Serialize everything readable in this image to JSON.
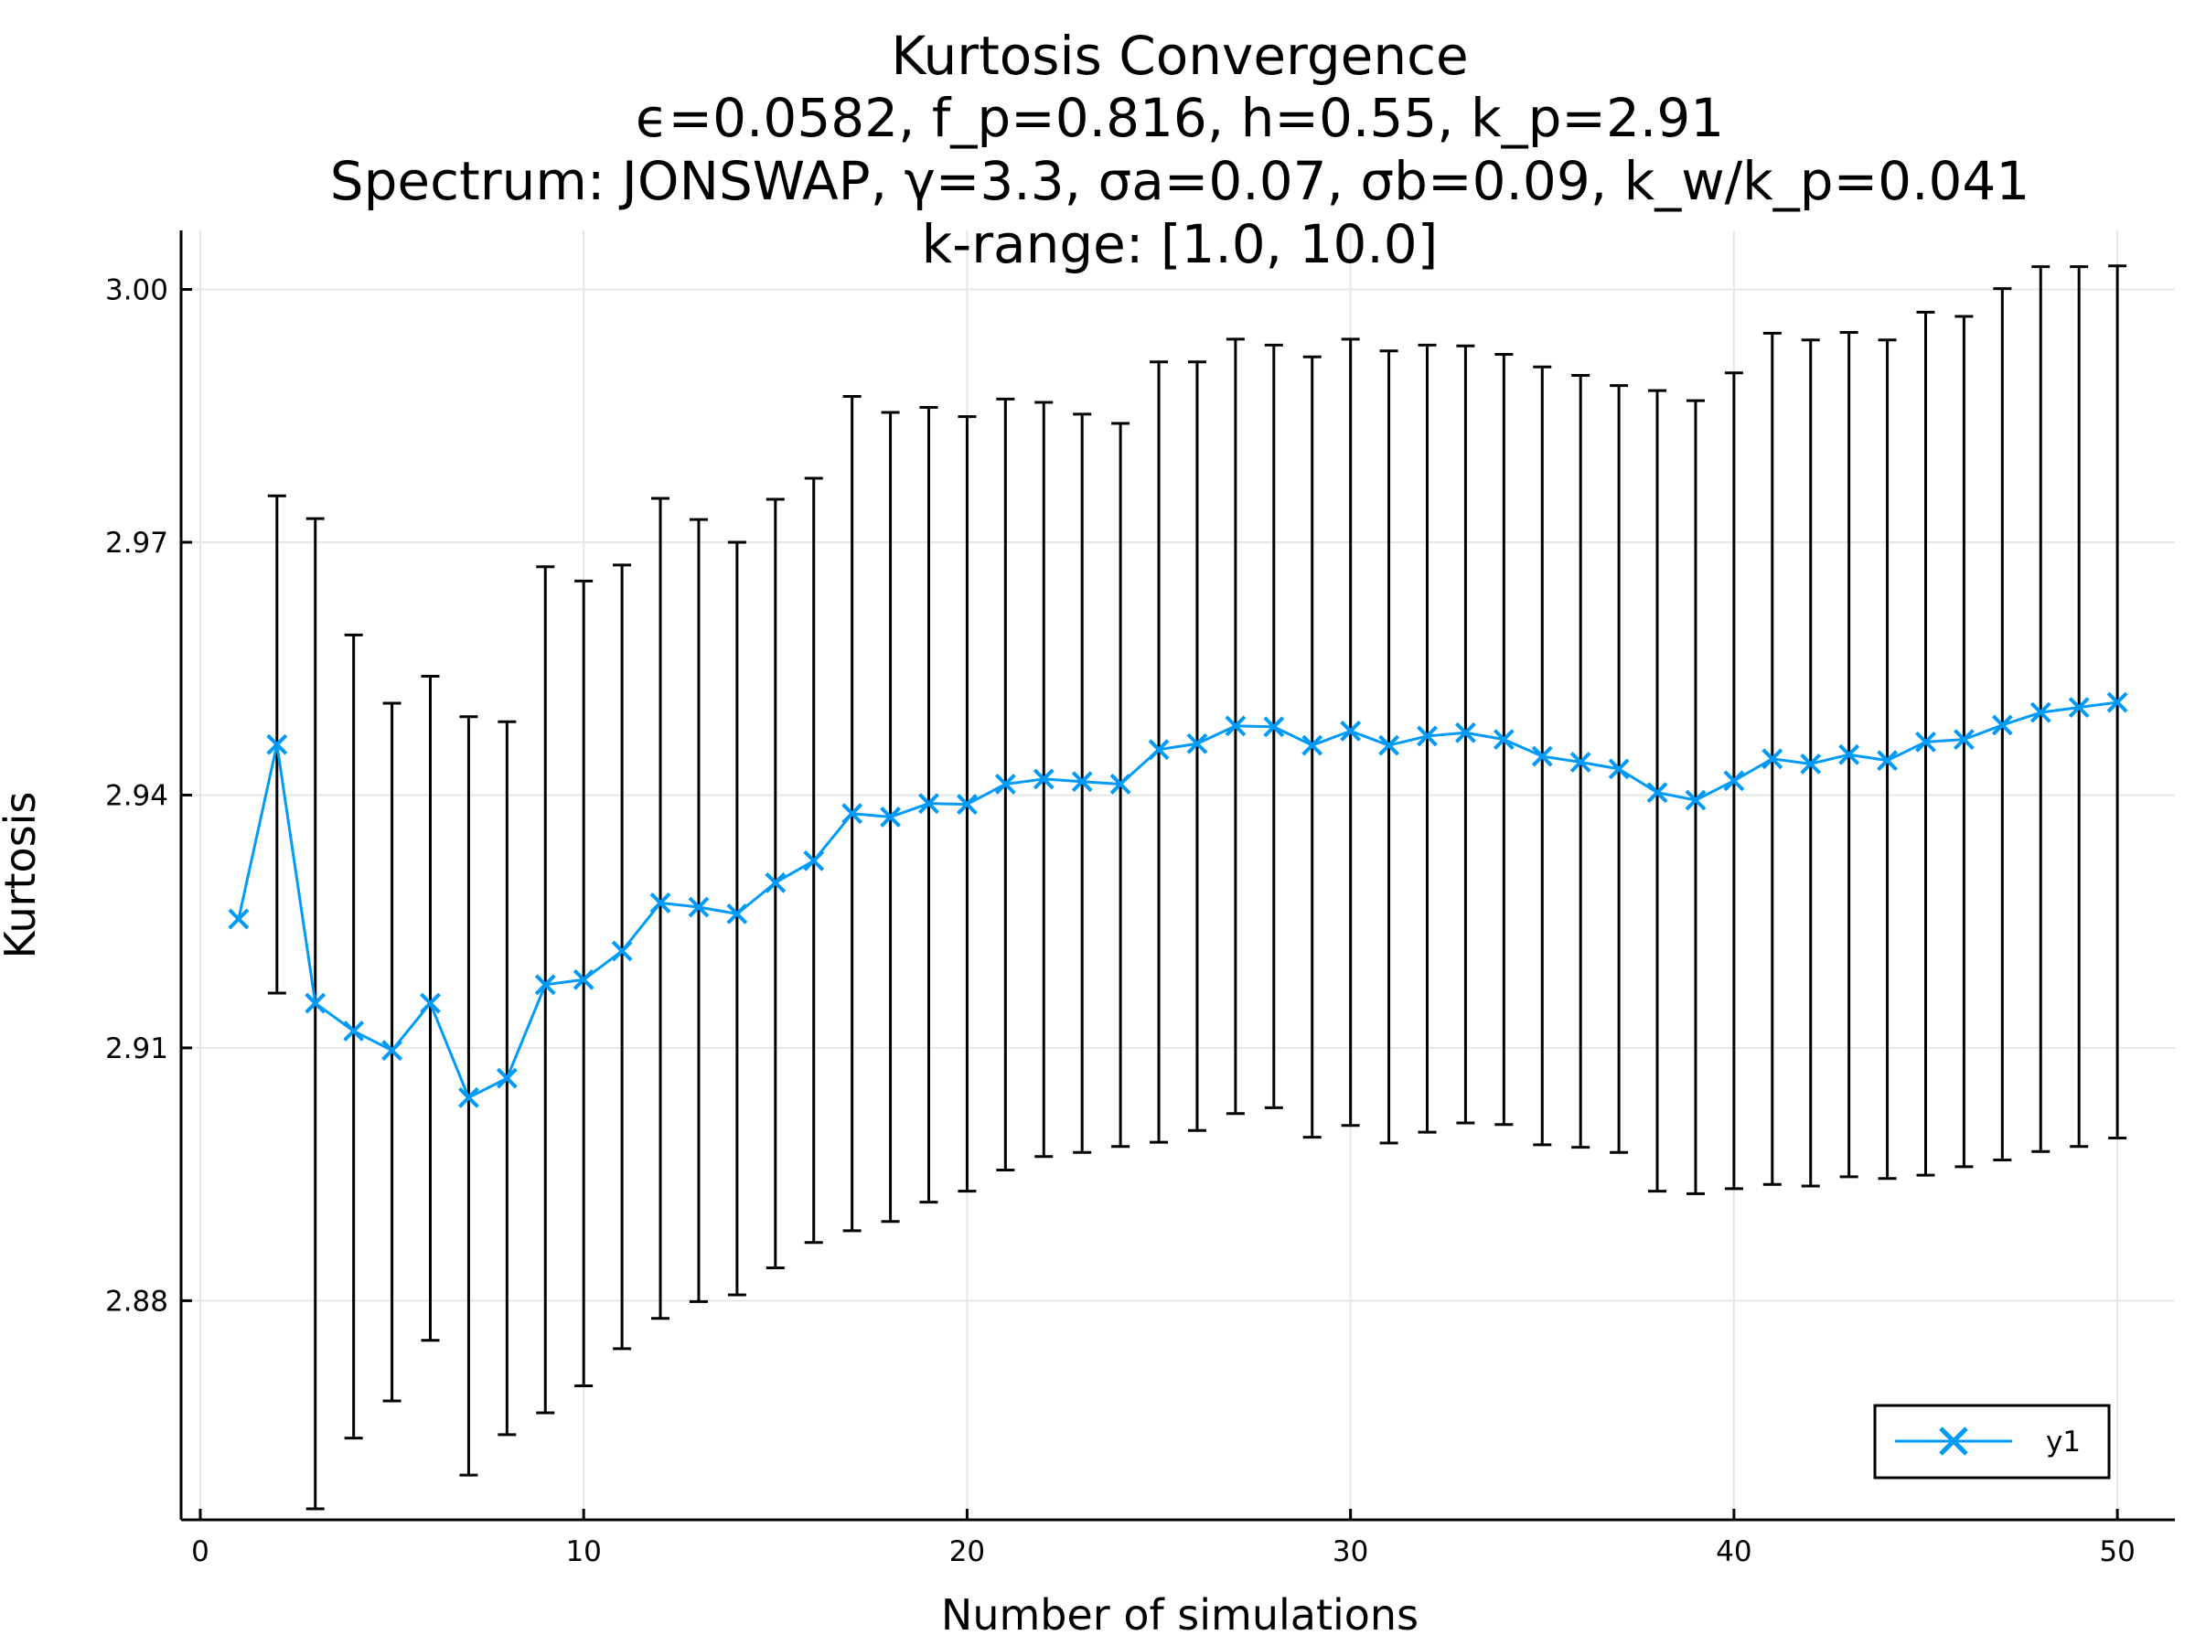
{
  "chart_data": {
    "type": "line",
    "title_lines": [
      "Kurtosis Convergence",
      "ϵ=0.0582, f_p=0.816, h=0.55, k_p=2.91",
      "Spectrum: JONSWAP, γ=3.3, σa=0.07, σb=0.09, k_w/k_p=0.041",
      "k-range: [1.0, 10.0]"
    ],
    "xlabel": "Number of simulations",
    "ylabel": "Kurtosis",
    "xlim": [
      -0.5,
      51.5
    ],
    "ylim": [
      2.854,
      3.007
    ],
    "xticks": [
      0,
      10,
      20,
      30,
      40,
      50
    ],
    "xtick_labels": [
      "0",
      "10",
      "20",
      "30",
      "40",
      "50"
    ],
    "yticks": [
      2.88,
      2.91,
      2.94,
      2.97,
      3.0
    ],
    "ytick_labels": [
      "2.88",
      "2.91",
      "2.94",
      "2.97",
      "3.00"
    ],
    "grid": true,
    "legend_position": "bottom-right",
    "series": [
      {
        "name": "y1",
        "color": "#009af9",
        "marker": "x",
        "x": [
          1,
          2,
          3,
          4,
          5,
          6,
          7,
          8,
          9,
          10,
          11,
          12,
          13,
          14,
          15,
          16,
          17,
          18,
          19,
          20,
          21,
          22,
          23,
          24,
          25,
          26,
          27,
          28,
          29,
          30,
          31,
          32,
          33,
          34,
          35,
          36,
          37,
          38,
          39,
          40,
          41,
          42,
          43,
          44,
          45,
          46,
          47,
          48,
          49,
          50
        ],
        "y": [
          2.9253,
          2.946,
          2.9153,
          2.912,
          2.9097,
          2.9153,
          2.9041,
          2.9064,
          2.9175,
          2.9181,
          2.9215,
          2.9272,
          2.9267,
          2.9259,
          2.9296,
          2.9322,
          2.9378,
          2.9374,
          2.939,
          2.9389,
          2.9413,
          2.9419,
          2.9416,
          2.9413,
          2.9454,
          2.9461,
          2.9482,
          2.9481,
          2.9459,
          2.9476,
          2.9459,
          2.947,
          2.9474,
          2.9466,
          2.9446,
          2.9439,
          2.9431,
          2.9403,
          2.9394,
          2.9417,
          2.9443,
          2.9437,
          2.9448,
          2.9441,
          2.9463,
          2.9466,
          2.9483,
          2.9498,
          2.9504,
          2.951
        ],
        "error_low": [
          null,
          2.9165,
          2.8553,
          2.8637,
          2.8681,
          2.8753,
          2.8593,
          2.8641,
          2.8667,
          2.8699,
          2.8743,
          2.8779,
          2.8799,
          2.8807,
          2.8839,
          2.8869,
          2.8883,
          2.8894,
          2.8917,
          2.893,
          2.8955,
          2.8971,
          2.8976,
          2.8983,
          2.8988,
          2.9002,
          2.9022,
          2.9029,
          2.8994,
          2.9008,
          2.8987,
          2.9,
          2.9011,
          2.9009,
          2.8985,
          2.8982,
          2.8976,
          2.893,
          2.8927,
          2.8933,
          2.8938,
          2.8936,
          2.8947,
          2.8945,
          2.8949,
          2.8959,
          2.8967,
          2.8977,
          2.8983,
          2.8993
        ],
        "error_high": [
          null,
          2.9755,
          2.9728,
          2.959,
          2.9509,
          2.9541,
          2.9493,
          2.9487,
          2.9671,
          2.9654,
          2.9673,
          2.9752,
          2.9727,
          2.97,
          2.9751,
          2.9776,
          2.9873,
          2.9854,
          2.986,
          2.9849,
          2.987,
          2.9866,
          2.9852,
          2.9841,
          2.9914,
          2.9914,
          2.9941,
          2.9934,
          2.992,
          2.9941,
          2.9927,
          2.9934,
          2.9933,
          2.9923,
          2.9908,
          2.9898,
          2.9886,
          2.988,
          2.9868,
          2.9901,
          2.9948,
          2.994,
          2.9949,
          2.994,
          2.9973,
          2.9968,
          3.0001,
          3.0027,
          3.0027,
          3.0028
        ]
      }
    ]
  }
}
